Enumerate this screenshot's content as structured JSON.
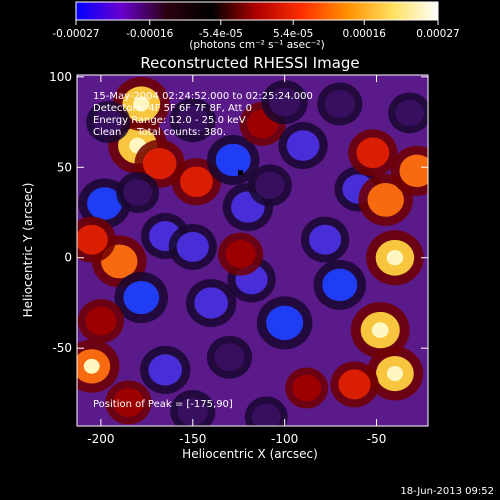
{
  "colorbar": {
    "tick_labels": [
      "-0.00027",
      "-0.00016",
      "-5.4e-05",
      "5.4e-05",
      "0.00016",
      "0.00027"
    ],
    "tick_values": [
      -0.00027,
      -0.00016,
      -5.4e-05,
      5.4e-05,
      0.00016,
      0.00027
    ],
    "range": [
      -0.00027,
      0.00027
    ],
    "unit_label": "(photons cm⁻² s⁻¹ asec⁻²)",
    "colors": [
      "#0000ff",
      "#6a00d0",
      "#2a0010",
      "#000000",
      "#b00000",
      "#ff3000",
      "#ff9000",
      "#ffe060",
      "#ffffff"
    ]
  },
  "chart_data": {
    "type": "heatmap",
    "title": "Reconstructed RHESSI Image",
    "xlabel": "Heliocentric X (arcsec)",
    "ylabel": "Heliocentric Y (arcsec)",
    "xlim": [
      -213,
      -22
    ],
    "ylim": [
      -93,
      101
    ],
    "x_ticks": [
      -200,
      -150,
      -100,
      -50
    ],
    "y_ticks": [
      -50,
      0,
      50,
      100
    ],
    "annotations": {
      "date_line": "15-May-2004 02:24:52.000 to 02:25:24.000",
      "detectors_line": "Detectors: 4F 5F 6F 7F 8F, Att 0",
      "energy_line": "Energy Range: 12.0 - 25.0 keV",
      "clean_line": "Clean     Total counts: 380.",
      "peak_line": "Position of Peak = [-175,90]"
    },
    "peak_position": [
      -175,
      90
    ],
    "marker_position": [
      -124,
      47
    ],
    "blobs": [
      {
        "x": -180,
        "y": 62,
        "value": 1.0
      },
      {
        "x": -178,
        "y": 85,
        "value": 0.9
      },
      {
        "x": -168,
        "y": 52,
        "value": 0.6
      },
      {
        "x": -148,
        "y": 42,
        "value": 0.55
      },
      {
        "x": -128,
        "y": 54,
        "value": -0.7
      },
      {
        "x": -120,
        "y": 28,
        "value": -0.6
      },
      {
        "x": -198,
        "y": 30,
        "value": -0.7
      },
      {
        "x": -196,
        "y": 75,
        "value": -0.3
      },
      {
        "x": -150,
        "y": 76,
        "value": -0.4
      },
      {
        "x": -112,
        "y": 74,
        "value": 0.4
      },
      {
        "x": -90,
        "y": 62,
        "value": -0.55
      },
      {
        "x": -100,
        "y": 86,
        "value": -0.4
      },
      {
        "x": -165,
        "y": 12,
        "value": -0.5
      },
      {
        "x": -190,
        "y": -2,
        "value": 0.8
      },
      {
        "x": -205,
        "y": 10,
        "value": 0.5
      },
      {
        "x": -178,
        "y": -22,
        "value": -0.75
      },
      {
        "x": -140,
        "y": -25,
        "value": -0.6
      },
      {
        "x": -150,
        "y": 6,
        "value": -0.5
      },
      {
        "x": -118,
        "y": -12,
        "value": -0.5
      },
      {
        "x": -130,
        "y": -55,
        "value": -0.35
      },
      {
        "x": -124,
        "y": 2,
        "value": 0.35
      },
      {
        "x": -100,
        "y": -36,
        "value": -0.85
      },
      {
        "x": -70,
        "y": -15,
        "value": -0.7
      },
      {
        "x": -78,
        "y": 10,
        "value": -0.5
      },
      {
        "x": -60,
        "y": 38,
        "value": -0.45
      },
      {
        "x": -108,
        "y": 40,
        "value": -0.3
      },
      {
        "x": -88,
        "y": -72,
        "value": 0.25
      },
      {
        "x": -40,
        "y": 0,
        "value": 0.95
      },
      {
        "x": -45,
        "y": 32,
        "value": 0.8
      },
      {
        "x": -52,
        "y": 58,
        "value": 0.55
      },
      {
        "x": -32,
        "y": 80,
        "value": -0.25
      },
      {
        "x": -48,
        "y": -40,
        "value": 1.0
      },
      {
        "x": -40,
        "y": -64,
        "value": 0.9
      },
      {
        "x": -62,
        "y": -70,
        "value": 0.5
      },
      {
        "x": -28,
        "y": 48,
        "value": 0.7
      },
      {
        "x": -205,
        "y": -60,
        "value": 0.85
      },
      {
        "x": -185,
        "y": -80,
        "value": 0.4
      },
      {
        "x": -200,
        "y": -35,
        "value": 0.4
      },
      {
        "x": -165,
        "y": -62,
        "value": -0.6
      },
      {
        "x": -150,
        "y": -85,
        "value": -0.35
      },
      {
        "x": -110,
        "y": -88,
        "value": -0.25
      },
      {
        "x": -180,
        "y": 36,
        "value": -0.25
      },
      {
        "x": -70,
        "y": 85,
        "value": -0.35
      }
    ]
  },
  "footer": {
    "timestamp": "18-Jun-2013 09:52"
  }
}
